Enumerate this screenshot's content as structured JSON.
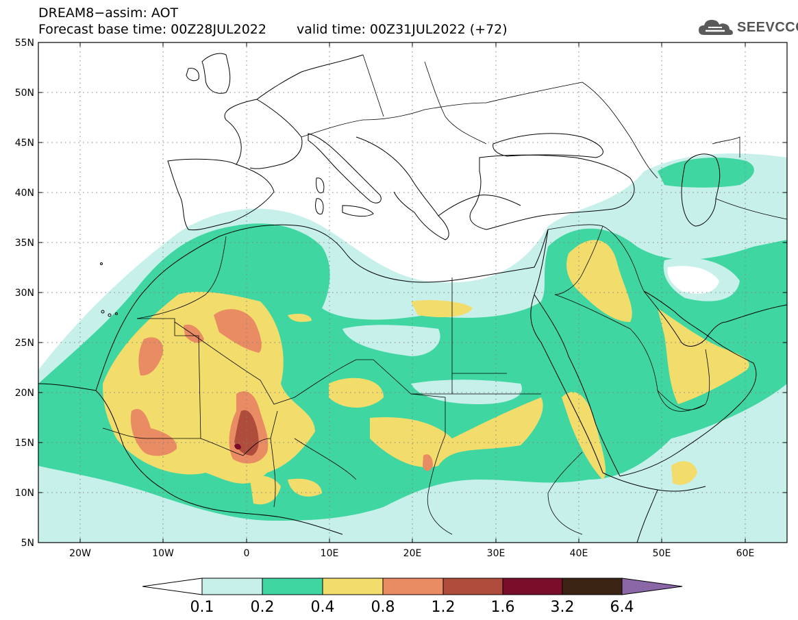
{
  "title": {
    "line1": "DREAM8−assim: AOT",
    "base": "Forecast base time: 00Z28JUL2022",
    "valid": "valid time: 00Z31JUL2022 (+72)"
  },
  "logo": {
    "text": "SEEVCCC",
    "icon": "cloud-logo-icon"
  },
  "axes": {
    "lat_labels": [
      "55N",
      "50N",
      "45N",
      "40N",
      "35N",
      "30N",
      "25N",
      "20N",
      "15N",
      "10N",
      "5N"
    ],
    "lon_labels": [
      "20W",
      "10W",
      "0",
      "10E",
      "20E",
      "30E",
      "40E",
      "50E",
      "60E"
    ]
  },
  "colorbar": {
    "colors": [
      "#c8f0eb",
      "#3fd6a2",
      "#f2dc6c",
      "#e98c63",
      "#b04c3c",
      "#7a0d2a",
      "#3c2414",
      "#8a67a7"
    ],
    "labels": [
      "0.1",
      "0.2",
      "0.4",
      "0.8",
      "1.2",
      "1.6",
      "3.2",
      "6.4"
    ]
  }
}
